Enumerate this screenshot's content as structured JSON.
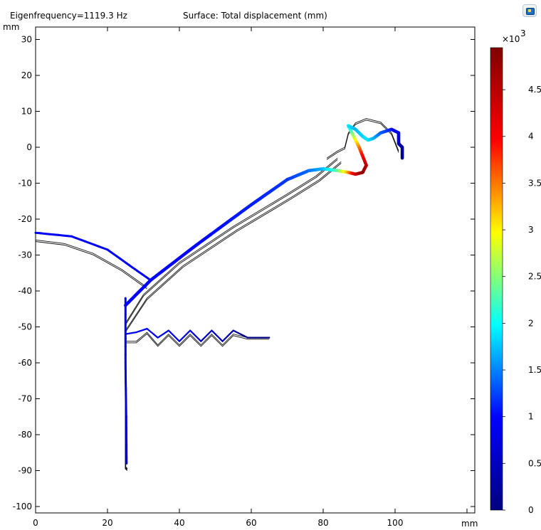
{
  "header": {
    "eigenfrequency": "Eigenfrequency=1119.3 Hz",
    "surface": "Surface: Total displacement (mm)"
  },
  "toolbar": {
    "icon": "export-image-icon"
  },
  "chart_data": {
    "type": "surface",
    "xlabel": "mm",
    "ylabel": "mm",
    "xlim": [
      0,
      120
    ],
    "ylim": [
      -100,
      30
    ],
    "xticks": [
      "0",
      "20",
      "40",
      "60",
      "80",
      "100"
    ],
    "yticks": [
      "30",
      "20",
      "10",
      "0",
      "-10",
      "-20",
      "-30",
      "-40",
      "-50",
      "-60",
      "-70",
      "-80",
      "-90",
      "-100"
    ],
    "colorbar": {
      "exponent_label": "×10",
      "exponent": "3",
      "ticks": [
        "4.5",
        "4",
        "3.5",
        "3",
        "2.5",
        "2",
        "1.5",
        "1",
        "0.5",
        "0"
      ],
      "tick_values": [
        4.5,
        4,
        3.5,
        3,
        2.5,
        2,
        1.5,
        1,
        0.5,
        0
      ],
      "min": 0,
      "max": 4.95,
      "colormap": "rainbow",
      "colors": [
        "#000080",
        "#0000ff",
        "#00ffff",
        "#ffff00",
        "#ff0000",
        "#800000"
      ]
    },
    "undeformed_geometry": {
      "dome": [
        [
          0,
          -25.8
        ],
        [
          8,
          -26.8
        ],
        [
          16,
          -29.5
        ],
        [
          24,
          -34
        ],
        [
          31,
          -39
        ]
      ],
      "surround_outer": [
        [
          25,
          -49
        ],
        [
          30,
          -41
        ],
        [
          40,
          -32
        ],
        [
          55,
          -22
        ],
        [
          70,
          -13
        ],
        [
          78,
          -8
        ],
        [
          84,
          -3
        ]
      ],
      "surround_inner": [
        [
          25,
          -51
        ],
        [
          31,
          -42
        ],
        [
          41,
          -33
        ],
        [
          56,
          -23
        ],
        [
          71,
          -14
        ],
        [
          79,
          -9
        ],
        [
          85,
          -4
        ]
      ],
      "roll": [
        [
          81,
          -3
        ],
        [
          84,
          -1
        ],
        [
          86,
          0
        ],
        [
          87,
          4
        ],
        [
          89,
          6.8
        ],
        [
          92,
          8
        ],
        [
          96,
          7
        ],
        [
          99,
          4
        ],
        [
          100,
          1.5
        ],
        [
          101,
          -1
        ]
      ],
      "spider": [
        [
          25,
          -54
        ],
        [
          28,
          -54
        ],
        [
          31,
          -51.5
        ],
        [
          34,
          -55
        ],
        [
          37,
          -52
        ],
        [
          40,
          -55
        ],
        [
          43,
          -52
        ],
        [
          46,
          -55
        ],
        [
          49,
          -52
        ],
        [
          52,
          -55
        ],
        [
          55,
          -52
        ],
        [
          59,
          -53
        ],
        [
          65,
          -53
        ]
      ],
      "voice_coil": [
        [
          25,
          -44
        ],
        [
          25,
          -89
        ],
        [
          25.5,
          -89.5
        ]
      ]
    },
    "deformed_shape": {
      "dome": [
        {
          "x": 0,
          "y": -23.8,
          "v": 0.9
        },
        {
          "x": 10,
          "y": -24.8,
          "v": 0.92
        },
        {
          "x": 20,
          "y": -28.5,
          "v": 0.95
        },
        {
          "x": 27,
          "y": -33.5,
          "v": 0.98
        },
        {
          "x": 32,
          "y": -37,
          "v": 1.0
        }
      ],
      "surround": [
        {
          "x": 25,
          "y": -44,
          "v": 0.95
        },
        {
          "x": 32,
          "y": -37,
          "v": 1.0
        },
        {
          "x": 45,
          "y": -27,
          "v": 1.0
        },
        {
          "x": 60,
          "y": -16,
          "v": 1.1
        },
        {
          "x": 70,
          "y": -9,
          "v": 1.2
        },
        {
          "x": 76,
          "y": -6.5,
          "v": 1.4
        },
        {
          "x": 80,
          "y": -6,
          "v": 1.7
        },
        {
          "x": 84,
          "y": -6.5,
          "v": 2.3
        },
        {
          "x": 87,
          "y": -7,
          "v": 3.3
        },
        {
          "x": 89,
          "y": -7.5,
          "v": 4.3
        },
        {
          "x": 91,
          "y": -7,
          "v": 4.8
        },
        {
          "x": 92,
          "y": -5,
          "v": 4.6
        },
        {
          "x": 90,
          "y": 0,
          "v": 3.6
        },
        {
          "x": 88,
          "y": 4,
          "v": 2.5
        },
        {
          "x": 87,
          "y": 6,
          "v": 1.9
        },
        {
          "x": 89,
          "y": 5,
          "v": 1.7
        },
        {
          "x": 91,
          "y": 3,
          "v": 1.8
        },
        {
          "x": 92.5,
          "y": 2,
          "v": 1.9
        },
        {
          "x": 94,
          "y": 2.5,
          "v": 1.7
        },
        {
          "x": 96,
          "y": 4,
          "v": 1.4
        },
        {
          "x": 99,
          "y": 5,
          "v": 1.1
        },
        {
          "x": 101,
          "y": 4,
          "v": 0.8
        },
        {
          "x": 101,
          "y": 1,
          "v": 0.5
        },
        {
          "x": 102,
          "y": 0,
          "v": 0.2
        },
        {
          "x": 102,
          "y": -3,
          "v": 0
        }
      ],
      "spider": [
        {
          "x": 25,
          "y": -52,
          "v": 1.0
        },
        {
          "x": 28,
          "y": -51.5,
          "v": 0.95
        },
        {
          "x": 31,
          "y": -50.5,
          "v": 0.9
        },
        {
          "x": 34,
          "y": -53,
          "v": 0.85
        },
        {
          "x": 37,
          "y": -51,
          "v": 0.8
        },
        {
          "x": 40,
          "y": -54,
          "v": 0.75
        },
        {
          "x": 43,
          "y": -51,
          "v": 0.7
        },
        {
          "x": 46,
          "y": -54,
          "v": 0.6
        },
        {
          "x": 49,
          "y": -51,
          "v": 0.5
        },
        {
          "x": 52,
          "y": -54,
          "v": 0.4
        },
        {
          "x": 55,
          "y": -51,
          "v": 0.3
        },
        {
          "x": 59,
          "y": -53,
          "v": 0.1
        },
        {
          "x": 65,
          "y": -53,
          "v": 0
        }
      ],
      "voice_coil": [
        {
          "x": 25,
          "y": -42,
          "v": 1.0
        },
        {
          "x": 25,
          "y": -60,
          "v": 0.8
        },
        {
          "x": 25.2,
          "y": -75,
          "v": 0.6
        },
        {
          "x": 25.3,
          "y": -88,
          "v": 0.4
        }
      ]
    }
  }
}
